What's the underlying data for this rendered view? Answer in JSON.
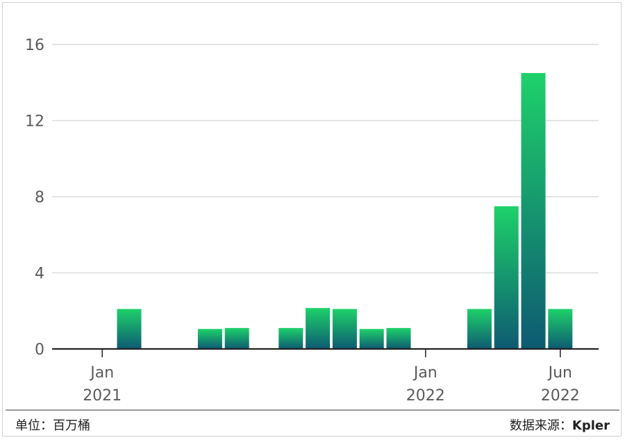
{
  "chart_data": {
    "type": "bar",
    "months": [
      "2021-01",
      "2021-02",
      "2021-03",
      "2021-04",
      "2021-05",
      "2021-06",
      "2021-07",
      "2021-08",
      "2021-09",
      "2021-10",
      "2021-11",
      "2021-12",
      "2022-01",
      "2022-02",
      "2022-03",
      "2022-04",
      "2022-05",
      "2022-06"
    ],
    "values": [
      0,
      2.1,
      0,
      0,
      1.05,
      1.1,
      0,
      1.1,
      2.15,
      2.1,
      1.05,
      1.1,
      0,
      0,
      2.1,
      7.5,
      14.5,
      2.1
    ],
    "ylim": [
      0,
      16
    ],
    "yticks": [
      0,
      4,
      8,
      12,
      16
    ],
    "xticks": [
      {
        "month": "2021-01",
        "label1": "Jan",
        "label2": "2021"
      },
      {
        "month": "2022-01",
        "label1": "Jan",
        "label2": "2022"
      },
      {
        "month": "2022-06",
        "label1": "Jun",
        "label2": "2022"
      }
    ],
    "grid": true,
    "bar_gradient": {
      "top": "#1ed16a",
      "bottom": "#0e5a72"
    },
    "axis_color": "#222222",
    "grid_color": "#dcdcdc"
  },
  "footer": {
    "unit_label": "单位：百万桶",
    "source_prefix": "数据来源：",
    "source_name": "Kpler"
  }
}
